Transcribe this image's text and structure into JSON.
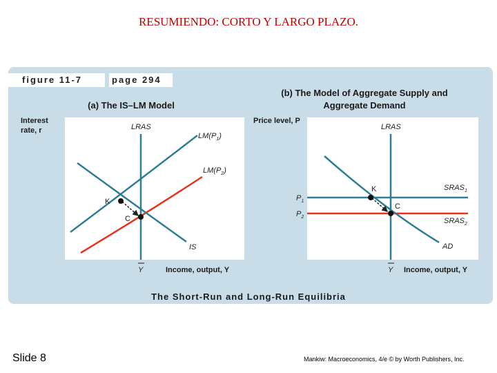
{
  "slide": {
    "title": "RESUMIENDO: CORTO Y LARGO PLAZO.",
    "number": "Slide 8",
    "credit": "Mankiw: Macroeconomics, 4/e © by Worth Publishers, Inc."
  },
  "figure": {
    "label": "figure 11-7",
    "page": "page 294",
    "caption": "The Short-Run and Long-Run Equilibria",
    "panel_a": {
      "title": "(a) The IS–LM Model",
      "y_axis": "Interest rate, r",
      "x_axis": "Income, output, Y",
      "x_tick": "Y",
      "curves": {
        "lras": "LRAS",
        "lm1": "LM(P",
        "lm1_sub": "1",
        "lm2": "LM(P",
        "lm2_sub": "2",
        "is": "IS"
      },
      "points": {
        "k": "K",
        "c": "C"
      }
    },
    "panel_b": {
      "title_line1": "(b) The Model of Aggregate Supply and",
      "title_line2": "Aggregate Demand",
      "y_axis": "Price level, P",
      "x_axis": "Income, output, Y",
      "x_tick": "Y",
      "curves": {
        "lras": "LRAS",
        "sras1": "SRAS",
        "sras1_sub": "1",
        "sras2": "SRAS",
        "sras2_sub": "2",
        "ad": "AD"
      },
      "ticks": {
        "p1": "P",
        "p1_sub": "1",
        "p2": "P",
        "p2_sub": "2"
      },
      "points": {
        "k": "K",
        "c": "C"
      }
    },
    "colors": {
      "panel_bg": "#c9dde9",
      "teal": "#2e7d93",
      "red": "#e8321e",
      "title_red": "#c00000"
    }
  }
}
